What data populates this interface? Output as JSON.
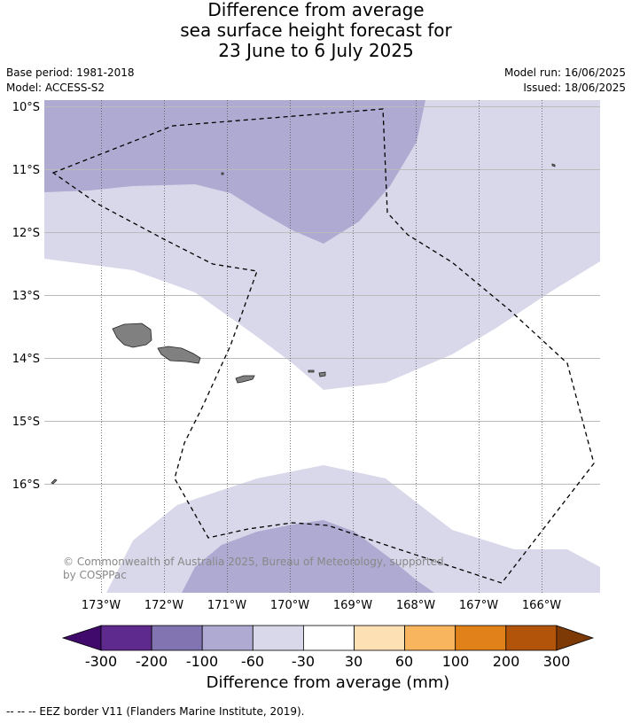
{
  "title": {
    "line1": "Difference from average",
    "line2": "sea surface height forecast for",
    "line3": "23 June to 6 July 2025"
  },
  "meta": {
    "base_period": "Base period: 1981-2018",
    "model": "Model: ACCESS-S2",
    "model_run": "Model run: 16/06/2025",
    "issued": "Issued: 18/06/2025"
  },
  "map": {
    "lat_labels": [
      "10°S",
      "11°S",
      "12°S",
      "13°S",
      "14°S",
      "15°S",
      "16°S"
    ],
    "lon_labels": [
      "173°W",
      "172°W",
      "171°W",
      "170°W",
      "169°W",
      "168°W",
      "167°W",
      "166°W"
    ],
    "copyright_line1": "© Commonwealth of Australia 2025, Bureau of Meteorology, supported",
    "copyright_line2": "by COSPPac",
    "land_color": "#808080"
  },
  "colorbar": {
    "title": "Difference from average (mm)",
    "tick_labels": [
      "-300",
      "-200",
      "-100",
      "-60",
      "-30",
      "30",
      "60",
      "100",
      "200",
      "300"
    ],
    "colors": [
      "#3f0a6b",
      "#5e2a8e",
      "#8274b0",
      "#aeaad1",
      "#d8d8ea",
      "#ffffff",
      "#fde0b4",
      "#f9b55d",
      "#e0811a",
      "#b2550a",
      "#7d3a07"
    ]
  },
  "footnote": "--  --  -- EEZ border V11 (Flanders Marine Institute, 2019)."
}
